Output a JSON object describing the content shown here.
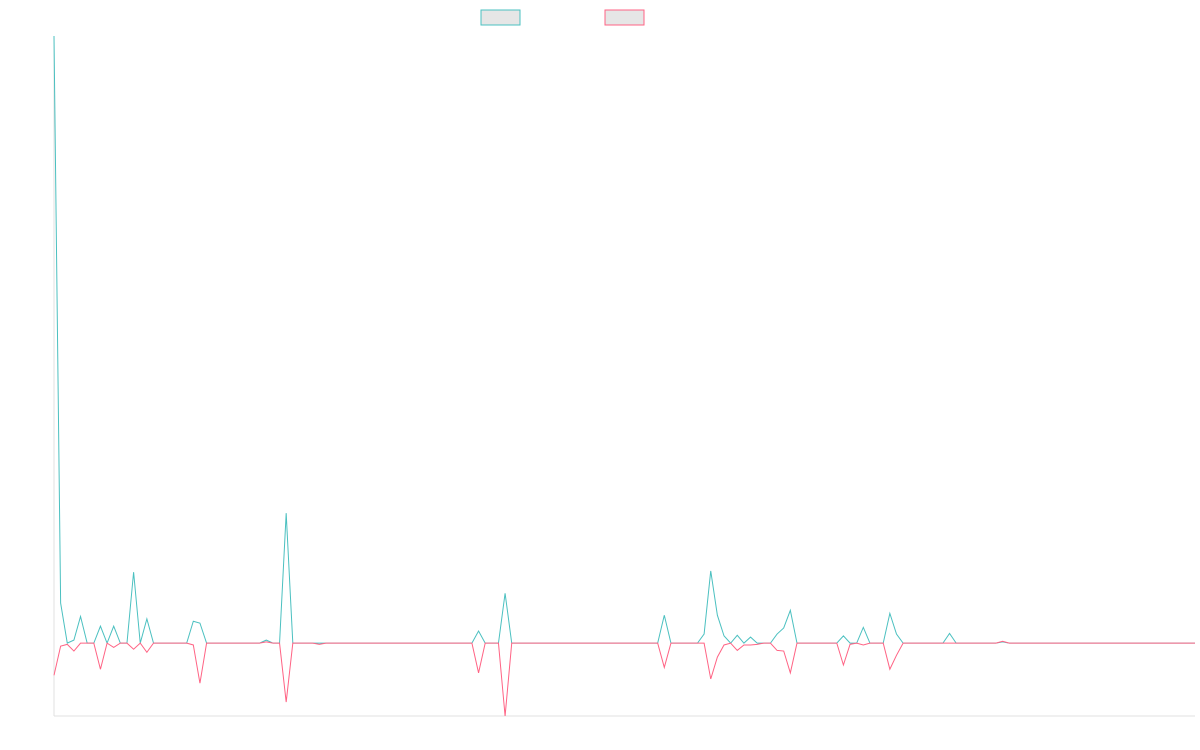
{
  "chart_data": {
    "type": "line",
    "categories": [
      null,
      null,
      null,
      null,
      null,
      null,
      null,
      null,
      null,
      null,
      null,
      null,
      null,
      null,
      null,
      null,
      null,
      null,
      null,
      null,
      null,
      null,
      null,
      null,
      null,
      null,
      null,
      null,
      null,
      null,
      null,
      null,
      null,
      null,
      null,
      null,
      null,
      null,
      null,
      null,
      null,
      null,
      null,
      null,
      null,
      null,
      null,
      null,
      null,
      null,
      null,
      null,
      null,
      null,
      null,
      null,
      null,
      null,
      null,
      null,
      null,
      null,
      null,
      null,
      null,
      null,
      null,
      null,
      null,
      null,
      null,
      null,
      null,
      null,
      null,
      null,
      null,
      null,
      null,
      null,
      null,
      null,
      null,
      null,
      null,
      null,
      null,
      null,
      null,
      null,
      null,
      null,
      null,
      null,
      null,
      null,
      null,
      null,
      null,
      null,
      null,
      null,
      null,
      null,
      null,
      null,
      null,
      null,
      null,
      null,
      null,
      null,
      null,
      null,
      null,
      null,
      null,
      null,
      null,
      null,
      null,
      null,
      null,
      null,
      null,
      null,
      null,
      null,
      null,
      null,
      null,
      null,
      null,
      null,
      null,
      null,
      null,
      null,
      null,
      null,
      null,
      null,
      null,
      null,
      null,
      null,
      null,
      null,
      null,
      null,
      null,
      null,
      null,
      null,
      null,
      null,
      null,
      null,
      null,
      null,
      null,
      null,
      null,
      null,
      null,
      null,
      null,
      null,
      null,
      null,
      null,
      null,
      null
    ],
    "series": [
      {
        "color": "#4bc0c0",
        "values": [
          100,
          6.6,
          0,
          0.5,
          4.4,
          0,
          0,
          2.8,
          0,
          2.8,
          0,
          0,
          11.7,
          0,
          4,
          0,
          0,
          0,
          0,
          0,
          0,
          3.6,
          3.3,
          0,
          0,
          0,
          0,
          0,
          0,
          0,
          0,
          0,
          0.5,
          0,
          0,
          21.4,
          0,
          0,
          0,
          0,
          0,
          0,
          0,
          0,
          0,
          0,
          0,
          0,
          0,
          0,
          0,
          0,
          0,
          0,
          0,
          0,
          0,
          0,
          0,
          0,
          0,
          0,
          0,
          0,
          2,
          0,
          0,
          0,
          8.2,
          0,
          0,
          0,
          0,
          0,
          0,
          0,
          0,
          0,
          0,
          0,
          0,
          0,
          0,
          0,
          0,
          0,
          0,
          0,
          0,
          0,
          0,
          0,
          4.6,
          0,
          0,
          0,
          0,
          0,
          1.5,
          11.9,
          4.6,
          1.2,
          0,
          1.3,
          0,
          1,
          0,
          0,
          0,
          1.5,
          2.5,
          5.4,
          0,
          0,
          0,
          0,
          0,
          0,
          0,
          1.2,
          0,
          0,
          2.6,
          0,
          0,
          0,
          4.9,
          1.5,
          0,
          0,
          0,
          0,
          0,
          0,
          0,
          1.6,
          0,
          0,
          0,
          0,
          0,
          0,
          0,
          0.2,
          0,
          0,
          0,
          0,
          0,
          0,
          0,
          0,
          0,
          0,
          0,
          0,
          0,
          0,
          0,
          0,
          0,
          0,
          0,
          0,
          0,
          0,
          0,
          0,
          0,
          0,
          0,
          0,
          0
        ]
      },
      {
        "color": "#ff6384",
        "values": [
          -5.3,
          -0.5,
          -0.2,
          -1.3,
          0,
          0,
          0,
          -4.3,
          0,
          -0.7,
          0,
          0,
          -1,
          0,
          -1.5,
          0,
          0,
          0,
          0,
          0,
          0,
          -0.3,
          -6.6,
          0,
          0,
          0,
          0,
          0,
          0,
          0,
          0,
          0,
          0.2,
          0,
          0,
          -9.7,
          0,
          0,
          0,
          0,
          -0.2,
          0,
          0,
          0,
          0,
          0,
          0,
          0,
          0,
          0,
          0,
          0,
          0,
          0,
          0,
          0,
          0,
          0,
          0,
          0,
          0,
          0,
          0,
          0,
          -4.9,
          0,
          0,
          0,
          -12,
          0,
          0,
          0,
          0,
          0,
          0,
          0,
          0,
          0,
          0,
          0,
          0,
          0,
          0,
          0,
          0,
          0,
          0,
          0,
          0,
          0,
          0,
          0,
          -4,
          0,
          0,
          0,
          0,
          0,
          0,
          -5.9,
          -2.3,
          -0.3,
          0,
          -1.2,
          -0.3,
          -0.3,
          -0.2,
          0,
          0,
          -1.2,
          -1.3,
          -4.9,
          0,
          0,
          0,
          0,
          0,
          0,
          0,
          -3.6,
          -0.2,
          0,
          -0.3,
          0,
          0,
          0,
          -4.3,
          -2,
          0,
          0,
          0,
          0,
          0,
          0,
          0,
          0,
          0,
          0,
          0,
          0,
          0,
          0,
          0,
          0.3,
          0,
          0,
          0,
          0,
          0,
          0,
          0,
          0,
          0,
          0,
          0,
          0,
          0,
          0,
          0,
          0,
          0,
          0,
          0,
          0,
          0,
          0,
          0,
          0,
          0,
          0,
          0,
          0,
          0
        ]
      }
    ],
    "ylim": [
      -12,
      100
    ]
  }
}
